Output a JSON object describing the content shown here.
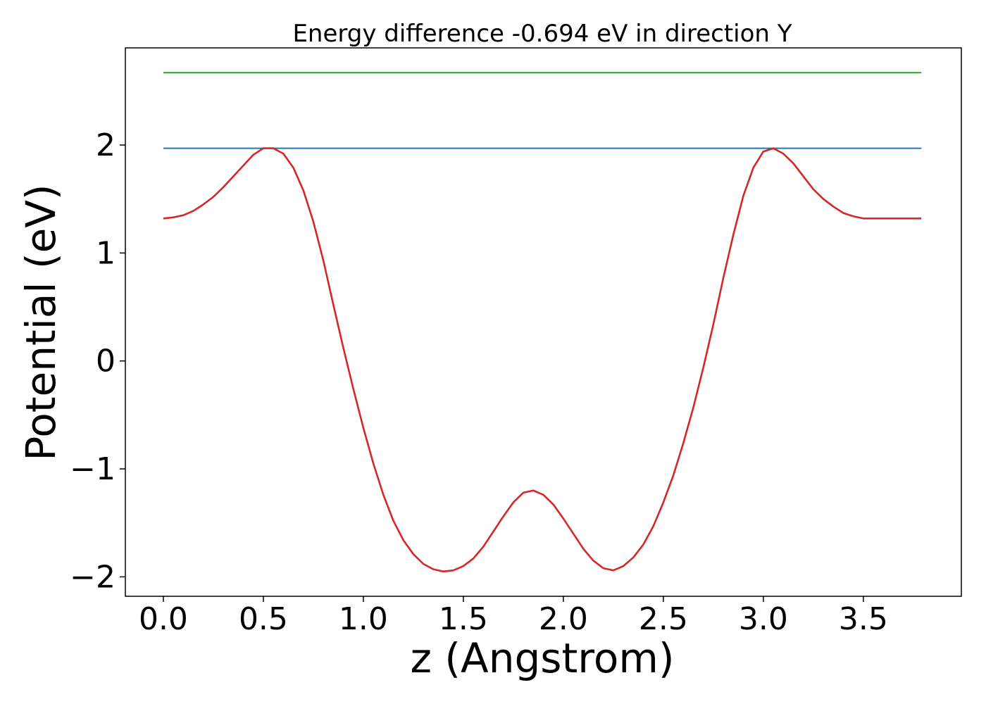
{
  "chart_data": {
    "type": "line",
    "title": "Energy difference -0.694 eV in direction Y",
    "xlabel": "z (Angstrom)",
    "ylabel": "Potential (eV)",
    "xlim": [
      -0.19,
      3.99
    ],
    "ylim": [
      -2.18,
      2.9
    ],
    "xticks": [
      0.0,
      0.5,
      1.0,
      1.5,
      2.0,
      2.5,
      3.0,
      3.5
    ],
    "xtick_labels": [
      "0.0",
      "0.5",
      "1.0",
      "1.5",
      "2.0",
      "2.5",
      "3.0",
      "3.5"
    ],
    "yticks": [
      -2,
      -1,
      0,
      1,
      2
    ],
    "ytick_labels": [
      "−2",
      "−1",
      "0",
      "1",
      "2"
    ],
    "grid": false,
    "series": [
      {
        "color": "#2ca02c",
        "x": [
          0.0,
          3.79
        ],
        "y": [
          2.67,
          2.67
        ]
      },
      {
        "color": "#1f77b4",
        "x": [
          0.0,
          3.79
        ],
        "y": [
          1.97,
          1.97
        ]
      },
      {
        "color": "#d62728",
        "x": [
          0.0,
          0.05,
          0.1,
          0.15,
          0.2,
          0.25,
          0.3,
          0.35,
          0.4,
          0.45,
          0.5,
          0.55,
          0.6,
          0.65,
          0.7,
          0.75,
          0.8,
          0.85,
          0.9,
          0.95,
          1.0,
          1.05,
          1.1,
          1.15,
          1.2,
          1.25,
          1.3,
          1.35,
          1.4,
          1.45,
          1.5,
          1.55,
          1.6,
          1.65,
          1.7,
          1.75,
          1.8,
          1.85,
          1.9,
          1.95,
          2.0,
          2.05,
          2.1,
          2.15,
          2.2,
          2.25,
          2.3,
          2.35,
          2.4,
          2.45,
          2.5,
          2.55,
          2.6,
          2.65,
          2.7,
          2.75,
          2.8,
          2.85,
          2.9,
          2.95,
          3.0,
          3.05,
          3.1,
          3.15,
          3.2,
          3.25,
          3.3,
          3.35,
          3.4,
          3.45,
          3.5,
          3.55,
          3.6,
          3.65,
          3.7,
          3.75,
          3.79
        ],
        "y": [
          1.32,
          1.33,
          1.35,
          1.39,
          1.45,
          1.52,
          1.61,
          1.71,
          1.81,
          1.91,
          1.97,
          1.97,
          1.92,
          1.79,
          1.58,
          1.29,
          0.93,
          0.52,
          0.12,
          -0.26,
          -0.62,
          -0.95,
          -1.24,
          -1.48,
          -1.66,
          -1.79,
          -1.88,
          -1.93,
          -1.95,
          -1.94,
          -1.9,
          -1.83,
          -1.72,
          -1.58,
          -1.44,
          -1.31,
          -1.22,
          -1.2,
          -1.24,
          -1.33,
          -1.46,
          -1.6,
          -1.74,
          -1.85,
          -1.92,
          -1.94,
          -1.9,
          -1.82,
          -1.7,
          -1.53,
          -1.31,
          -1.06,
          -0.76,
          -0.43,
          -0.06,
          0.34,
          0.77,
          1.17,
          1.53,
          1.79,
          1.94,
          1.97,
          1.92,
          1.83,
          1.71,
          1.59,
          1.5,
          1.43,
          1.37,
          1.34,
          1.32,
          1.32,
          1.32,
          1.32,
          1.32,
          1.32,
          1.32
        ]
      }
    ]
  }
}
